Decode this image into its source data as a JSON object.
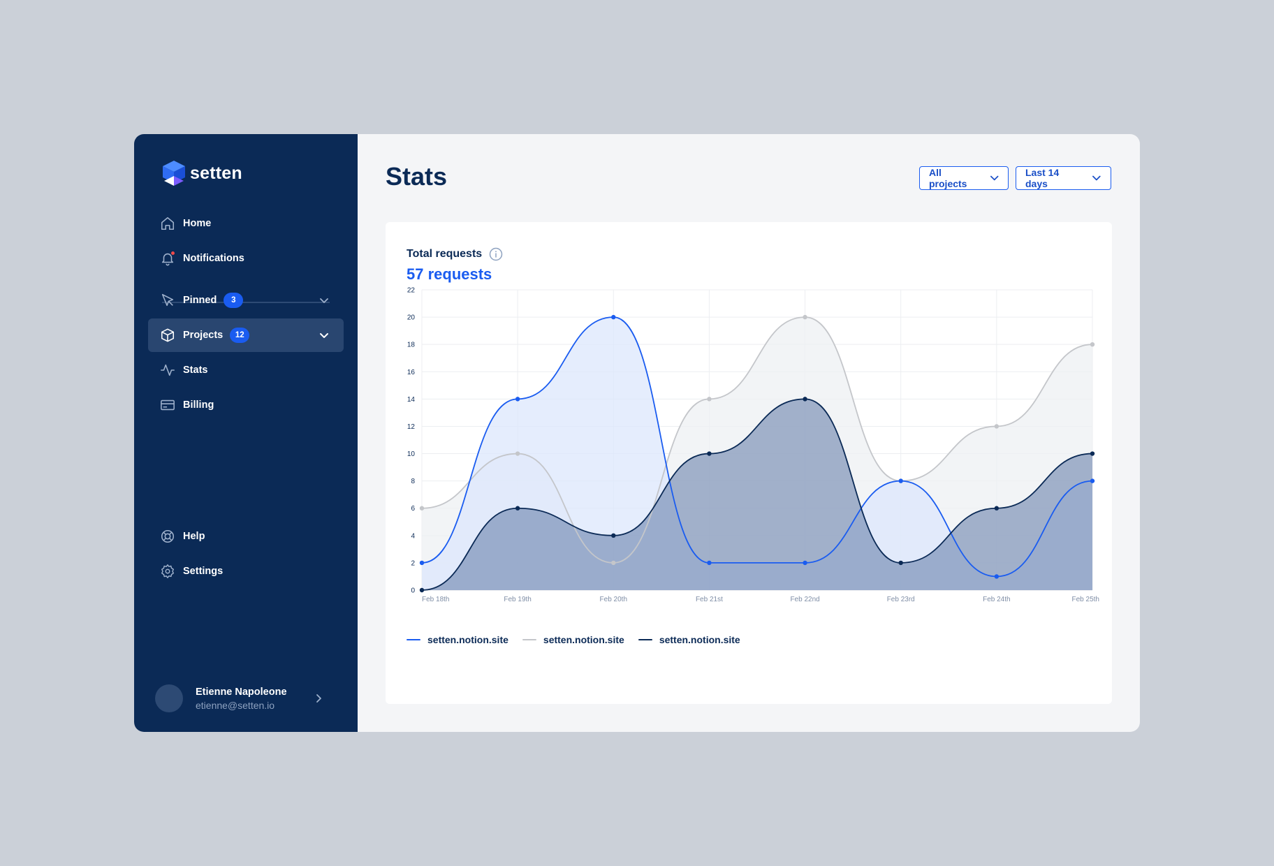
{
  "app": {
    "brand": "setten",
    "colors": {
      "sidebar": "#0b2a56",
      "accent": "#1a5cf0",
      "page_bg": "#f4f5f7",
      "outer_bg": "#cbd0d8"
    }
  },
  "sidebar": {
    "items": [
      {
        "label": "Home",
        "icon": "home-icon"
      },
      {
        "label": "Notifications",
        "icon": "bell-icon"
      },
      {
        "label": "Pinned",
        "icon": "pin-icon",
        "badge": "3"
      },
      {
        "label": "Projects",
        "icon": "box-icon",
        "badge": "12",
        "active": true
      },
      {
        "label": "Stats",
        "icon": "activity-icon"
      },
      {
        "label": "Billing",
        "icon": "card-icon"
      },
      {
        "label": "Help",
        "icon": "lifebuoy-icon"
      },
      {
        "label": "Settings",
        "icon": "gear-icon"
      }
    ],
    "user": {
      "name": "Etienne Napoleone",
      "email": "etienne@setten.io"
    }
  },
  "header": {
    "title": "Stats",
    "filters": {
      "projects": "All projects",
      "range": "Last 14 days"
    }
  },
  "card": {
    "title": "Total requests",
    "value": "57 requests"
  },
  "chart_data": {
    "type": "area",
    "x": [
      "Feb 18th",
      "Feb 19th",
      "Feb 20th",
      "Feb 21st",
      "Feb 22nd",
      "Feb 23rd",
      "Feb 24th",
      "Feb 25th"
    ],
    "y_ticks": [
      0,
      2,
      4,
      6,
      8,
      10,
      12,
      14,
      16,
      18,
      20,
      22
    ],
    "ylim": [
      0,
      22
    ],
    "grid": true,
    "legend_placement": "bottom-left",
    "series": [
      {
        "name": "setten.notion.site",
        "color": "#1a5cf0",
        "fill": "#dce7fc",
        "values": [
          2,
          14,
          20,
          2,
          2,
          8,
          1,
          8
        ]
      },
      {
        "name": "setten.notion.site",
        "color": "#c4c6ca",
        "fill": "#eef0f3",
        "values": [
          6,
          10,
          2,
          14,
          20,
          8,
          12,
          18
        ]
      },
      {
        "name": "setten.notion.site",
        "color": "#0b2a56",
        "fill": "#5f78a6",
        "values": [
          0,
          6,
          4,
          10,
          14,
          2,
          6,
          10
        ]
      }
    ]
  }
}
